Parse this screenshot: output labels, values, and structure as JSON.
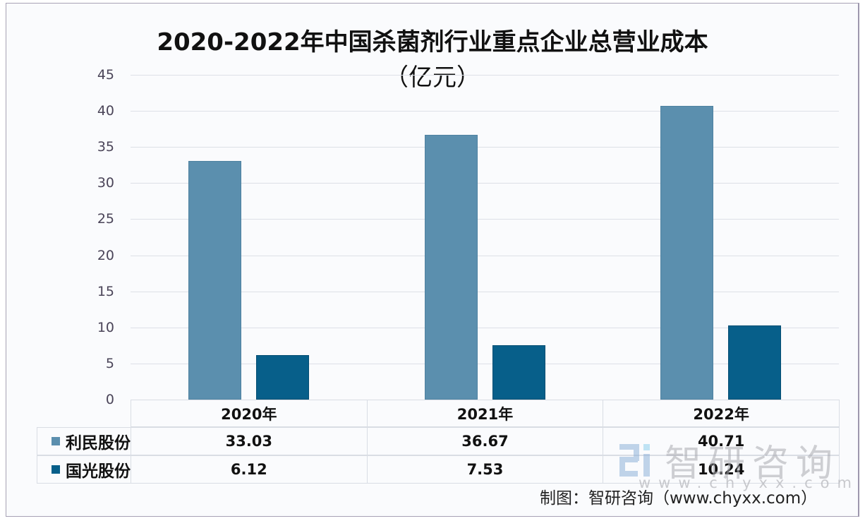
{
  "title": {
    "line1": "2020-2022年中国杀菌剂行业重点企业总营业成本",
    "line2": "（亿元）"
  },
  "colors": {
    "series1": "#5b8fae",
    "series2": "#075f8a",
    "grid": "#dde0e7",
    "axis_text": "#4a4458"
  },
  "table": {
    "headers": [
      "2020年",
      "2021年",
      "2022年"
    ],
    "rows": [
      {
        "label": "利民股份",
        "values": [
          "33.03",
          "36.67",
          "40.71"
        ]
      },
      {
        "label": "国光股份",
        "values": [
          "6.12",
          "7.53",
          "10.24"
        ]
      }
    ]
  },
  "source": "制图：智研咨询（www.chyxx.com）",
  "watermark": {
    "text": "智研咨询",
    "url": "www.chyxx.com"
  },
  "chart_data": {
    "type": "bar",
    "title": "2020-2022年中国杀菌剂行业重点企业总营业成本（亿元）",
    "xlabel": "",
    "ylabel": "亿元",
    "categories": [
      "2020年",
      "2021年",
      "2022年"
    ],
    "series": [
      {
        "name": "利民股份",
        "values": [
          33.03,
          36.67,
          40.71
        ],
        "color": "#5b8fae"
      },
      {
        "name": "国光股份",
        "values": [
          6.12,
          7.53,
          10.24
        ],
        "color": "#075f8a"
      }
    ],
    "ylim": [
      0,
      45
    ],
    "yticks": [
      0,
      5,
      10,
      15,
      20,
      25,
      30,
      35,
      40,
      45
    ],
    "grid": true,
    "legend_position": "data-table-left"
  }
}
